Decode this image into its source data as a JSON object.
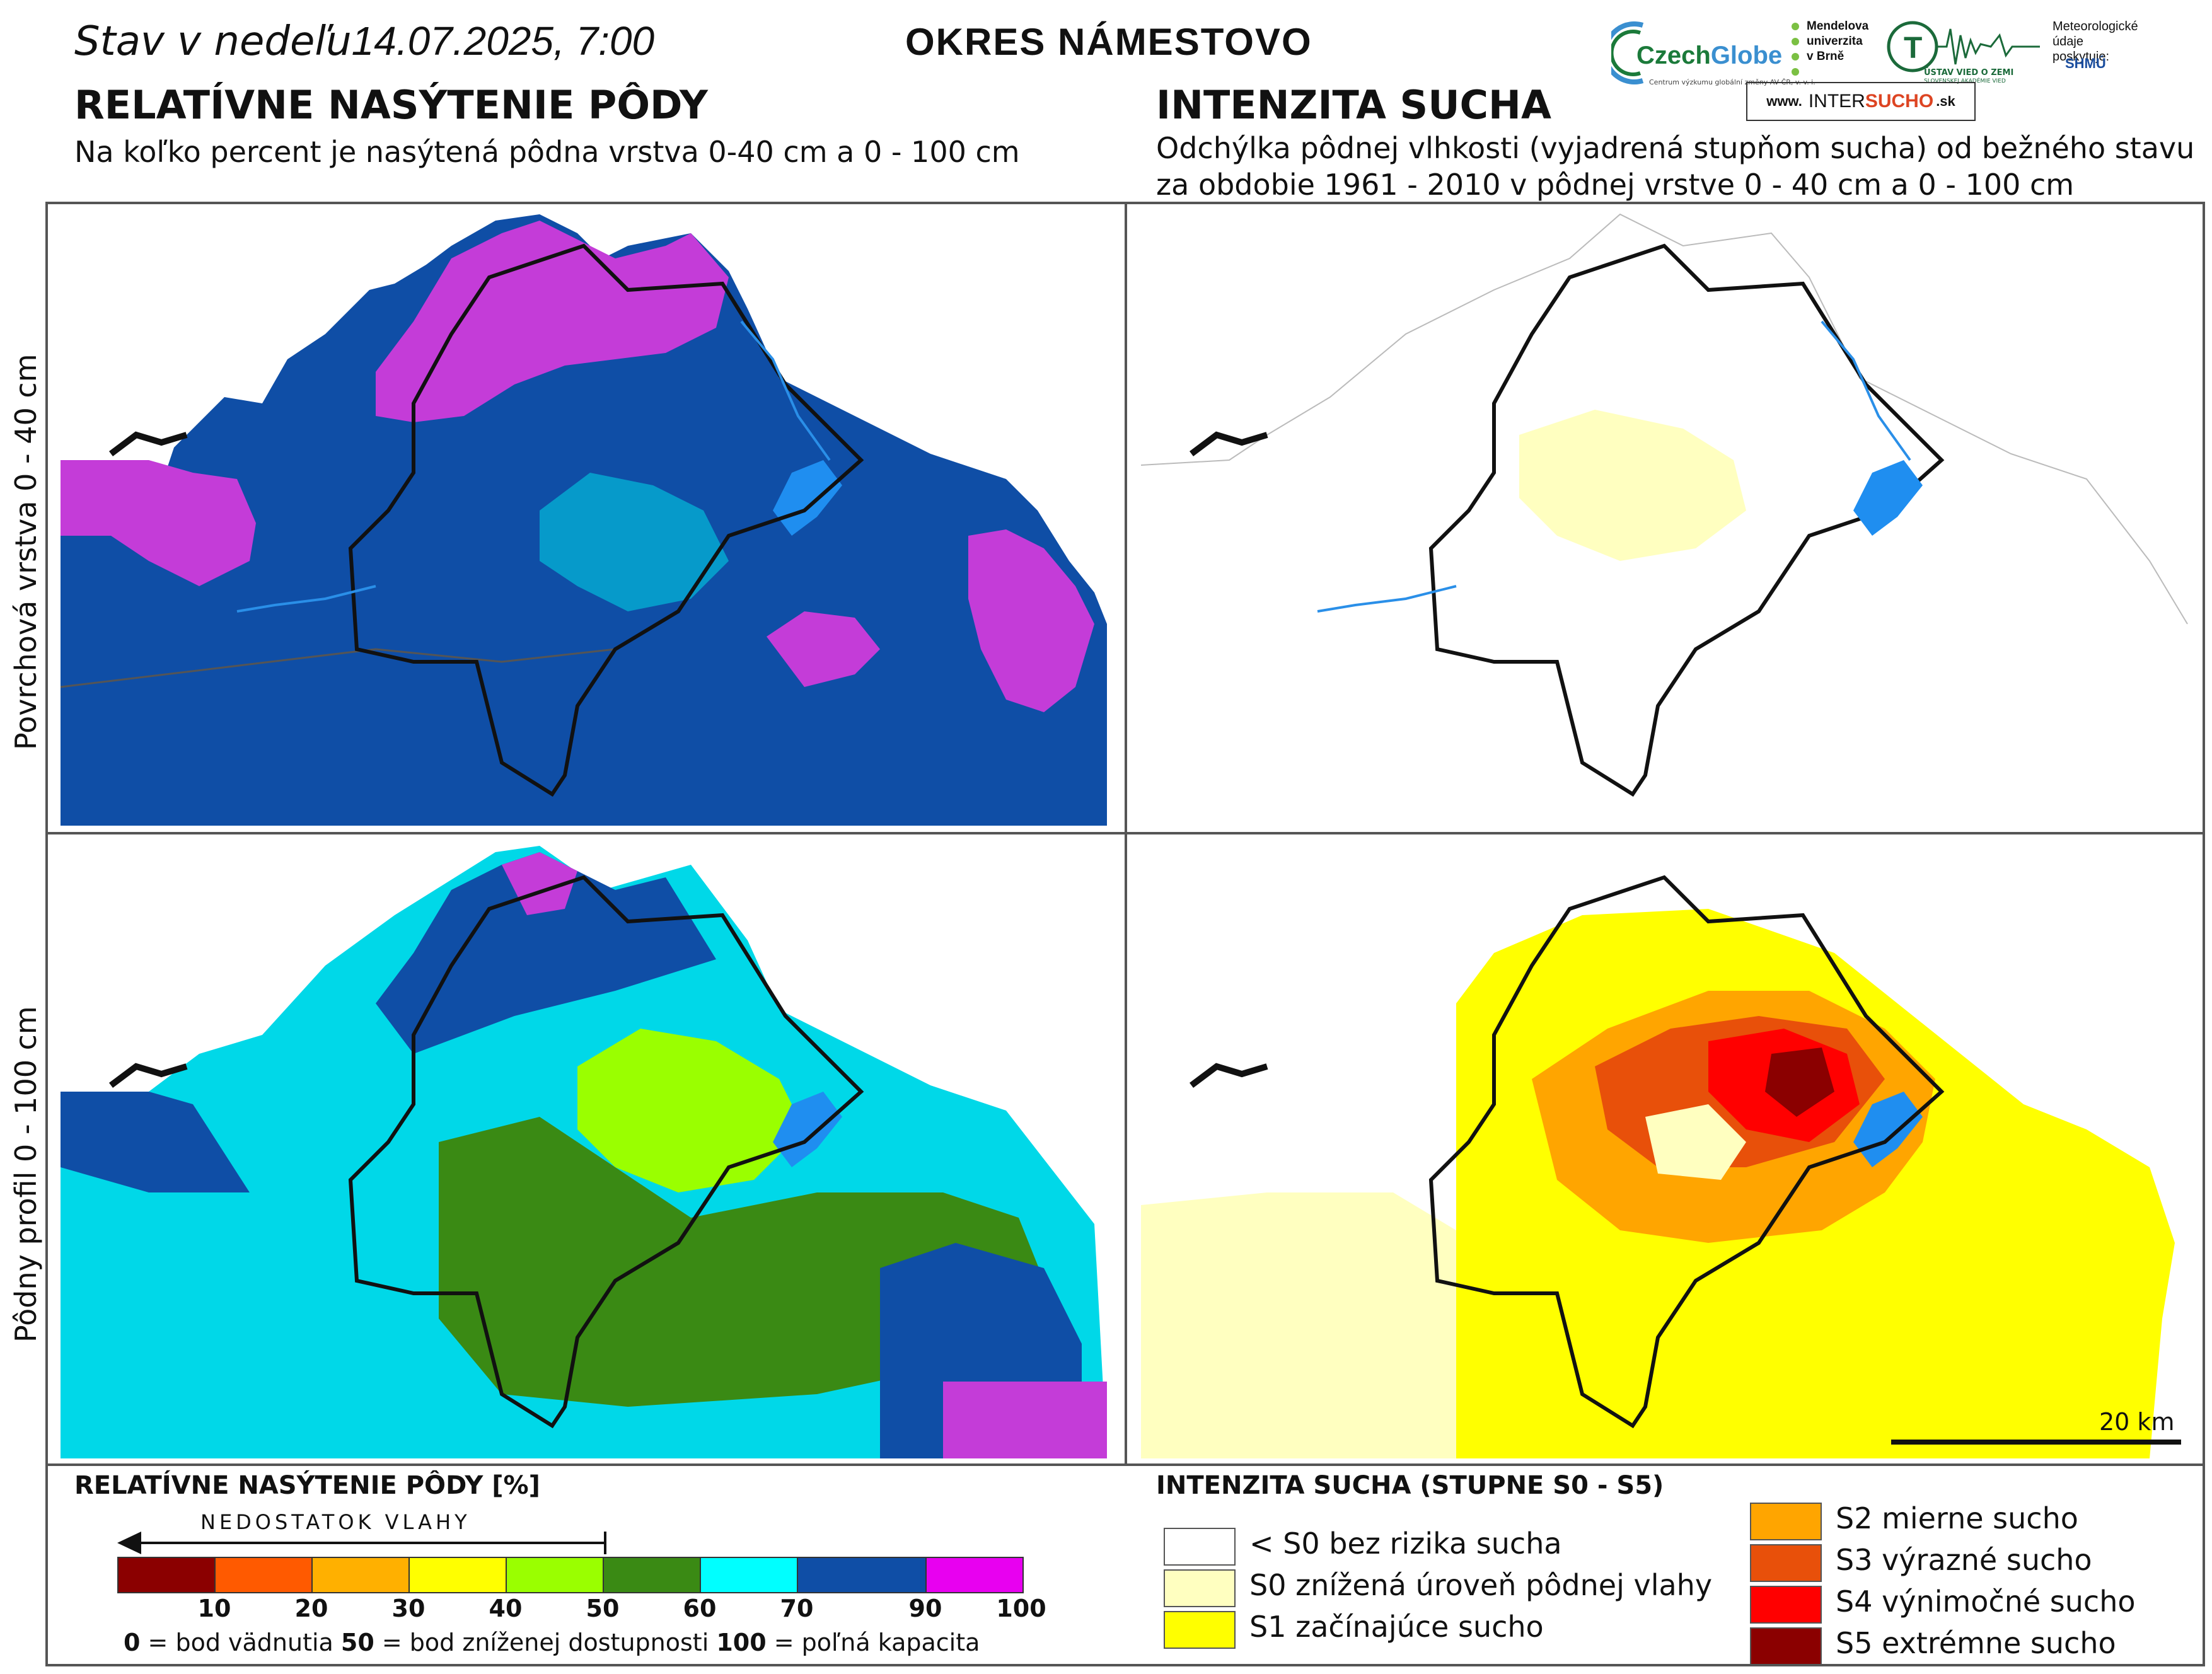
{
  "header": {
    "date_prefix": "Stav v nedeľu",
    "date": "14.07.2025, 7:00",
    "district": "OKRES  NÁMESTOVO"
  },
  "left": {
    "title": "RELATÍVNE NASÝTENIE PÔDY",
    "subtitle": "Na koľko percent je nasýtená pôdna vrstva 0-40 cm a 0 - 100 cm"
  },
  "right": {
    "title": "INTENZITA SUCHA",
    "subtitle_line1": "Odchýlka pôdnej vlhkosti (vyjadrená stupňom sucha) od bežného stavu",
    "subtitle_line2": "za obdobie 1961 - 2010 v pôdnej vrstve 0 - 40 cm a 0 - 100 cm"
  },
  "logos": {
    "czechglobe_a": "Czech",
    "czechglobe_b": "Globe",
    "czechglobe_tiny": "Centrum výzkumu globální změny AV ČR, v. v. i.",
    "mendel_line1": "Mendelova",
    "mendel_line2": "univerzita",
    "mendel_line3": "v Brně",
    "ustav_line1": "ÚSTAV VIED O ZEMI",
    "ustav_line2": "SLOVENSKEJ AKADÉMIE VIED",
    "meteo_line1": "Meteorologické",
    "meteo_line2": "údaje",
    "meteo_line3": "poskytuje:",
    "shmu": "SHMÚ",
    "inter_www": "www.",
    "inter_a": "INTER",
    "inter_b": "SUCHO",
    "inter_sk": ".sk"
  },
  "rows": {
    "top_label": "Povrchová vrstva 0 - 40 cm",
    "bottom_label": "Pôdny profil 0 - 100 cm"
  },
  "scale_label": "20 km",
  "legend_left": {
    "title": "RELATÍVNE NASÝTENIE PÔDY [%]",
    "deficit": "NEDOSTATOK VLAHY",
    "ticks": [
      "10",
      "20",
      "30",
      "40",
      "50",
      "60",
      "70",
      "90",
      "100"
    ],
    "colors": [
      "#8b0000",
      "#ff5a00",
      "#ffb000",
      "#ffff00",
      "#9aff00",
      "#3a8a14",
      "#00ffff",
      "#0f4ea6",
      "#e800f0"
    ],
    "note_0": "0",
    "note_0_text": " = bod vädnutia  ",
    "note_50": "50",
    "note_50_text": " = bod zníženej dostupnosti  ",
    "note_100": "100",
    "note_100_text": " = poľná kapacita"
  },
  "legend_right": {
    "title": "INTENZITA SUCHA (STUPNE S0 - S5)",
    "items": [
      {
        "label": "< S0 bez rizika sucha",
        "color": "#ffffff"
      },
      {
        "label": "S0 znížená úroveň pôdnej vlahy",
        "color": "#ffffc0"
      },
      {
        "label": "S1 začínajúce sucho",
        "color": "#ffff00"
      },
      {
        "label": "S2 mierne sucho",
        "color": "#ffa500"
      },
      {
        "label": "S3 výrazné sucho",
        "color": "#e8500a"
      },
      {
        "label": "S4 výnimočné sucho",
        "color": "#ff0000"
      },
      {
        "label": "S5 extrémne sucho",
        "color": "#8b0000"
      }
    ]
  }
}
